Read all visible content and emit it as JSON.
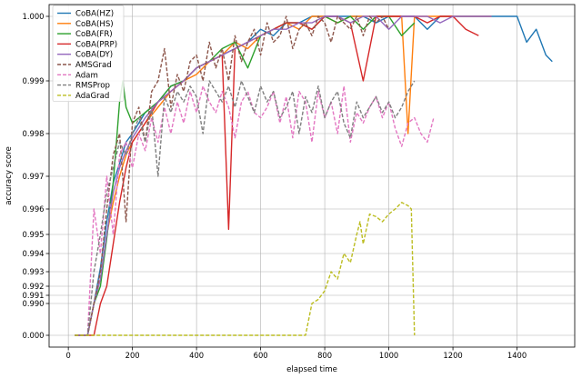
{
  "chart_data": {
    "type": "line",
    "xlabel": "elapsed time",
    "ylabel": "accuracy score",
    "x_ticks": [
      0,
      200,
      400,
      600,
      800,
      1000,
      1200,
      1400
    ],
    "xlim": [
      -60,
      1580
    ],
    "y_ticks": [
      0.0,
      0.99,
      0.991,
      0.992,
      0.993,
      0.994,
      0.995,
      0.996,
      0.997,
      0.998,
      0.999,
      1.0
    ],
    "y_tick_labels": [
      "0.000",
      "0.990",
      "0.991",
      "0.992",
      "0.993",
      "0.994",
      "0.995",
      "0.996",
      "0.997",
      "0.998",
      "0.999",
      "1.000"
    ],
    "y_scale": "nonlinear (expanded near 1.0)",
    "grid": true,
    "legend_position": "top-left",
    "series": [
      {
        "name": "CoBA(HZ)",
        "color": "#1f77b4",
        "style": "solid",
        "x": [
          20,
          60,
          80,
          100,
          120,
          140,
          160,
          180,
          200,
          240,
          280,
          320,
          360,
          400,
          440,
          480,
          520,
          560,
          600,
          640,
          680,
          720,
          760,
          800,
          840,
          880,
          920,
          960,
          1000,
          1040,
          1080,
          1120,
          1160,
          1200,
          1240,
          1280,
          1320,
          1360,
          1400,
          1430,
          1460,
          1490,
          1510
        ],
        "y": [
          0.0,
          0.0,
          0.9895,
          0.9932,
          0.9955,
          0.9968,
          0.9973,
          0.9978,
          0.998,
          0.9984,
          0.9986,
          0.9989,
          0.999,
          0.9992,
          0.9993,
          0.9994,
          0.9995,
          0.9996,
          0.9998,
          0.9997,
          0.9999,
          0.9999,
          1.0,
          1.0,
          1.0,
          1.0,
          1.0,
          0.9999,
          1.0,
          1.0,
          1.0,
          0.9998,
          1.0,
          1.0,
          1.0,
          1.0,
          1.0,
          1.0,
          1.0,
          0.9996,
          0.9998,
          0.9994,
          0.9993
        ]
      },
      {
        "name": "CoBA(HS)",
        "color": "#ff7f0e",
        "style": "solid",
        "x": [
          20,
          60,
          80,
          100,
          120,
          140,
          160,
          180,
          200,
          240,
          280,
          320,
          360,
          400,
          440,
          480,
          520,
          560,
          600,
          640,
          680,
          720,
          760,
          800,
          840,
          880,
          920,
          960,
          1000,
          1040,
          1060,
          1080,
          1120,
          1160,
          1200,
          1240,
          1280,
          1320
        ],
        "y": [
          0.0,
          0.0,
          0.988,
          0.9925,
          0.995,
          0.9962,
          0.997,
          0.9975,
          0.9978,
          0.9982,
          0.9985,
          0.9988,
          0.999,
          0.9991,
          0.9993,
          0.9994,
          0.9996,
          0.9995,
          0.9997,
          0.9998,
          0.9999,
          0.9998,
          1.0,
          1.0,
          0.9999,
          1.0,
          1.0,
          1.0,
          1.0,
          1.0,
          0.998,
          1.0,
          1.0,
          1.0,
          1.0,
          1.0,
          1.0,
          1.0
        ]
      },
      {
        "name": "CoBA(FR)",
        "color": "#2ca02c",
        "style": "solid",
        "x": [
          20,
          60,
          80,
          100,
          120,
          140,
          160,
          170,
          180,
          200,
          240,
          280,
          320,
          360,
          400,
          440,
          480,
          520,
          560,
          600,
          640,
          680,
          720,
          760,
          800,
          840,
          880,
          920,
          960,
          1000,
          1040,
          1080
        ],
        "y": [
          0.0,
          0.0,
          0.987,
          0.992,
          0.9948,
          0.9968,
          0.9986,
          0.999,
          0.9985,
          0.9982,
          0.9984,
          0.9986,
          0.9989,
          0.999,
          0.9992,
          0.9993,
          0.9995,
          0.9996,
          0.9992,
          0.9997,
          0.9998,
          0.9999,
          0.9999,
          0.9998,
          1.0,
          0.9999,
          1.0,
          0.9998,
          1.0,
          1.0,
          0.9997,
          0.9999
        ]
      },
      {
        "name": "CoBA(PRP)",
        "color": "#d62728",
        "style": "solid",
        "x": [
          20,
          60,
          80,
          100,
          120,
          140,
          160,
          180,
          200,
          240,
          280,
          320,
          360,
          400,
          440,
          480,
          500,
          520,
          560,
          600,
          640,
          680,
          720,
          760,
          800,
          840,
          880,
          920,
          960,
          1000,
          1040,
          1080,
          1120,
          1160,
          1200,
          1240,
          1280
        ],
        "y": [
          0.0,
          0.0,
          0.0,
          0.988,
          0.992,
          0.9945,
          0.9962,
          0.9972,
          0.9978,
          0.9982,
          0.9986,
          0.9988,
          0.999,
          0.9992,
          0.9993,
          0.9994,
          0.9952,
          0.9995,
          0.9996,
          0.9997,
          0.9998,
          0.9999,
          0.9999,
          0.9998,
          1.0,
          1.0,
          0.9999,
          0.999,
          1.0,
          1.0,
          1.0,
          1.0,
          0.9999,
          1.0,
          1.0,
          0.9998,
          0.9997
        ]
      },
      {
        "name": "CoBA(DY)",
        "color": "#9467bd",
        "style": "solid",
        "x": [
          20,
          60,
          80,
          100,
          120,
          140,
          160,
          180,
          200,
          240,
          280,
          320,
          360,
          400,
          440,
          480,
          520,
          560,
          600,
          640,
          680,
          720,
          760,
          800,
          840,
          880,
          920,
          960,
          1000,
          1040,
          1080,
          1120,
          1160,
          1200,
          1240,
          1280,
          1320
        ],
        "y": [
          0.0,
          0.0,
          0.9885,
          0.9925,
          0.995,
          0.9965,
          0.9972,
          0.9976,
          0.9979,
          0.9983,
          0.9986,
          0.9988,
          0.999,
          0.9992,
          0.9993,
          0.9994,
          0.9995,
          0.9996,
          0.9997,
          0.9998,
          0.9998,
          0.9999,
          0.9999,
          1.0,
          1.0,
          0.9999,
          1.0,
          1.0,
          0.9998,
          1.0,
          1.0,
          1.0,
          0.9999,
          1.0,
          1.0,
          1.0,
          1.0
        ]
      },
      {
        "name": "AMSGrad",
        "color": "#8c564b",
        "style": "dashed",
        "x": [
          20,
          60,
          80,
          100,
          120,
          140,
          160,
          180,
          200,
          220,
          240,
          260,
          280,
          300,
          320,
          340,
          360,
          380,
          400,
          420,
          440,
          460,
          480,
          500,
          520,
          540,
          560,
          580,
          600,
          620,
          640,
          660,
          680,
          700,
          720,
          740,
          760,
          780,
          800,
          820,
          840,
          860,
          880,
          900,
          920,
          940,
          960,
          980,
          1000
        ],
        "y": [
          0.0,
          0.0,
          0.988,
          0.993,
          0.996,
          0.9975,
          0.998,
          0.9955,
          0.9982,
          0.9985,
          0.9978,
          0.9988,
          0.999,
          0.9995,
          0.9985,
          0.9991,
          0.9988,
          0.9993,
          0.9994,
          0.999,
          0.9996,
          0.9992,
          0.9995,
          0.999,
          0.9997,
          0.9993,
          0.9996,
          0.9998,
          0.9994,
          0.9999,
          0.9996,
          0.9997,
          1.0,
          0.9995,
          0.9998,
          0.9999,
          0.9997,
          1.0,
          0.9999,
          0.9996,
          1.0,
          0.9999,
          0.9998,
          1.0,
          0.9997,
          1.0,
          0.9999,
          1.0,
          0.9998
        ]
      },
      {
        "name": "Adam",
        "color": "#e377c2",
        "style": "dashed",
        "x": [
          20,
          60,
          80,
          100,
          120,
          140,
          160,
          180,
          200,
          220,
          240,
          260,
          280,
          300,
          320,
          340,
          360,
          380,
          400,
          420,
          440,
          460,
          480,
          500,
          520,
          540,
          560,
          580,
          600,
          620,
          640,
          660,
          680,
          700,
          720,
          740,
          760,
          780,
          800,
          820,
          840,
          860,
          880,
          900,
          920,
          940,
          960,
          980,
          1000,
          1020,
          1040,
          1060,
          1080,
          1100,
          1120,
          1140
        ],
        "y": [
          0.0,
          0.0,
          0.996,
          0.994,
          0.997,
          0.995,
          0.9975,
          0.9978,
          0.9972,
          0.998,
          0.9976,
          0.9983,
          0.9978,
          0.9985,
          0.998,
          0.9986,
          0.9982,
          0.9988,
          0.9984,
          0.9989,
          0.9986,
          0.9984,
          0.9988,
          0.9985,
          0.9979,
          0.9986,
          0.9988,
          0.9984,
          0.9983,
          0.9985,
          0.9988,
          0.9982,
          0.9987,
          0.9979,
          0.9988,
          0.9986,
          0.9978,
          0.9988,
          0.9983,
          0.9986,
          0.998,
          0.9989,
          0.9978,
          0.9984,
          0.9982,
          0.9985,
          0.9987,
          0.9983,
          0.9986,
          0.9981,
          0.9977,
          0.9982,
          0.9983,
          0.998,
          0.9978,
          0.9983
        ]
      },
      {
        "name": "RMSProp",
        "color": "#7f7f7f",
        "style": "dashed",
        "x": [
          20,
          60,
          80,
          100,
          120,
          140,
          160,
          180,
          200,
          220,
          240,
          260,
          280,
          300,
          320,
          340,
          360,
          380,
          400,
          420,
          440,
          460,
          480,
          500,
          520,
          540,
          560,
          580,
          600,
          620,
          640,
          660,
          680,
          700,
          720,
          740,
          760,
          780,
          800,
          820,
          840,
          860,
          880,
          900,
          920,
          940,
          960,
          980,
          1000,
          1020,
          1040,
          1060,
          1080
        ],
        "y": [
          0.0,
          0.0,
          0.993,
          0.995,
          0.9965,
          0.9972,
          0.9978,
          0.9975,
          0.998,
          0.9983,
          0.9978,
          0.9985,
          0.997,
          0.9987,
          0.9984,
          0.9988,
          0.9986,
          0.9989,
          0.9987,
          0.998,
          0.999,
          0.9988,
          0.9986,
          0.9989,
          0.9985,
          0.999,
          0.9987,
          0.9984,
          0.9989,
          0.9986,
          0.9988,
          0.9983,
          0.9985,
          0.9988,
          0.998,
          0.9987,
          0.9984,
          0.9989,
          0.9983,
          0.9986,
          0.9988,
          0.9982,
          0.9979,
          0.9986,
          0.9983,
          0.9985,
          0.9987,
          0.9984,
          0.9986,
          0.9983,
          0.9985,
          0.9988,
          0.999
        ]
      },
      {
        "name": "AdaGrad",
        "color": "#bcbd22",
        "style": "dashed",
        "x": [
          20,
          60,
          100,
          150,
          200,
          250,
          300,
          350,
          400,
          450,
          480,
          500,
          540,
          580,
          620,
          660,
          700,
          720,
          740,
          760,
          780,
          800,
          820,
          840,
          860,
          880,
          900,
          910,
          920,
          940,
          960,
          980,
          1000,
          1020,
          1040,
          1060,
          1070,
          1080
        ],
        "y": [
          0.0,
          0.0,
          0.0,
          0.0,
          0.0,
          0.0,
          0.0,
          0.0,
          0.0,
          0.0,
          0.0,
          0.0,
          0.0,
          0.0,
          0.0,
          0.0,
          0.0,
          0.0,
          0.0,
          0.99,
          0.9905,
          0.9915,
          0.993,
          0.9925,
          0.994,
          0.9935,
          0.995,
          0.9955,
          0.9945,
          0.9958,
          0.9957,
          0.9955,
          0.9958,
          0.996,
          0.9962,
          0.9961,
          0.996,
          0.0
        ]
      }
    ]
  }
}
